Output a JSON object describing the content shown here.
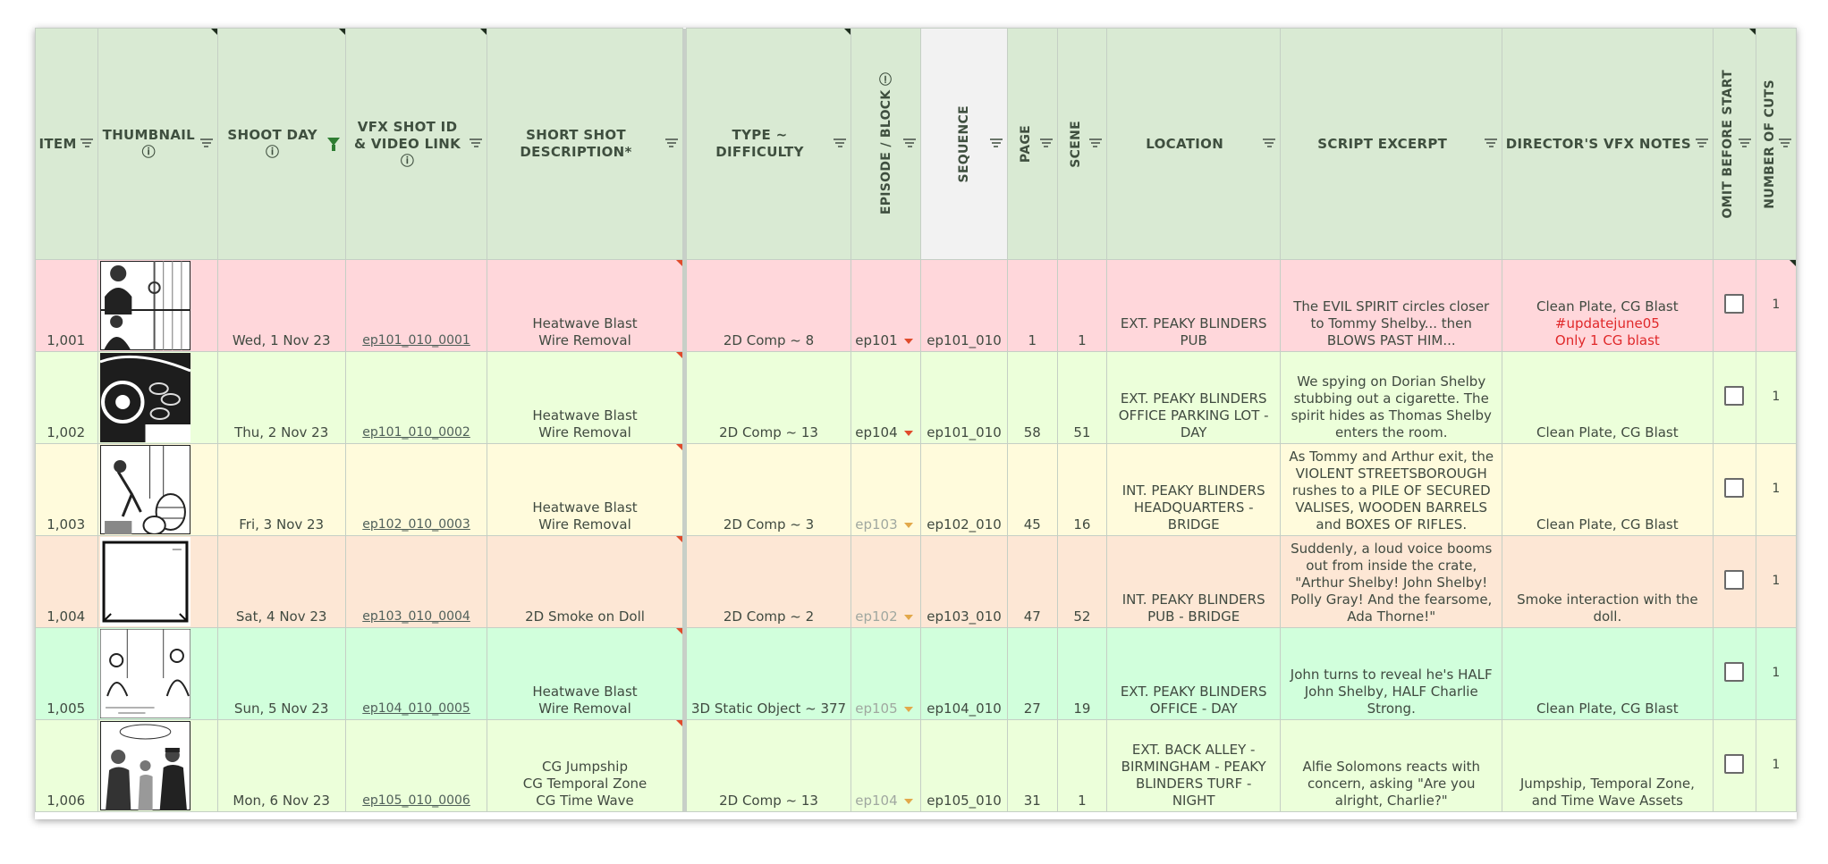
{
  "headers": {
    "item": "ITEM",
    "thumbnail": "THUMBNAIL ⓘ",
    "shoot_day": "SHOOT DAY ⓘ",
    "vfx_shot_id": "VFX SHOT ID & VIDEO LINK ⓘ",
    "short_shot_description": "SHORT SHOT DESCRIPTION*",
    "type_difficulty": "TYPE ~ DIFFICULTY",
    "episode_block": "EPISODE / BLOCK ⓘ",
    "sequence": "SEQUENCE",
    "page": "PAGE",
    "scene": "SCENE",
    "location": "LOCATION",
    "script_excerpt": "SCRIPT EXCERPT",
    "directors_notes": "DIRECTOR'S VFX NOTES",
    "omit_before_start": "OMIT BEFORE START",
    "number_of_cuts": "NUMBER OF CUTS"
  },
  "colors": {
    "header_bg": "#d9ead3",
    "sequence_header_bg": "#f2f2f2",
    "row_pink": "#ffd7db",
    "row_light_green": "#ecffda",
    "row_yellow": "#fffbdc",
    "row_peach": "#fde7d5",
    "row_mint": "#d1ffdc",
    "accent_red": "#e0282a",
    "filter_green": "#2e7d32"
  },
  "rows": [
    {
      "item": "1,001",
      "thumbnail_icon": "storyboard-two-men-talking",
      "shoot_day": "Wed, 1 Nov 23",
      "vfx_shot_id": "ep101_010_0001",
      "description": [
        "Heatwave Blast",
        "Wire Removal"
      ],
      "type": "2D Comp ~ 8",
      "episode": "ep101",
      "episode_dim": false,
      "sequence": "ep101_010",
      "page": "1",
      "scene": "1",
      "location": [
        "EXT. PEAKY BLINDERS",
        "PUB"
      ],
      "script": [
        "The EVIL SPIRIT circles closer",
        "to Tommy Shelby... then",
        "BLOWS PAST HIM..."
      ],
      "notes": [
        "Clean Plate, CG Blast"
      ],
      "notes_red": [
        "#updatejune05",
        "Only 1 CG blast"
      ],
      "cuts": "1",
      "bg": "#ffd7db"
    },
    {
      "item": "1,002",
      "thumbnail_icon": "storyboard-circles",
      "shoot_day": "Thu, 2 Nov 23",
      "vfx_shot_id": "ep101_010_0002",
      "description": [
        "Heatwave Blast",
        "Wire Removal"
      ],
      "type": "2D Comp ~ 13",
      "episode": "ep104",
      "episode_dim": false,
      "sequence": "ep101_010",
      "page": "58",
      "scene": "51",
      "location": [
        "EXT. PEAKY BLINDERS",
        "OFFICE PARKING LOT -",
        "DAY"
      ],
      "script": [
        "We spying on Dorian Shelby",
        "stubbing out a cigarette. The",
        "spirit hides as Thomas Shelby",
        "enters the room."
      ],
      "notes": [
        "Clean Plate, CG Blast"
      ],
      "notes_red": [],
      "cuts": "1",
      "bg": "#ecffda"
    },
    {
      "item": "1,003",
      "thumbnail_icon": "storyboard-barrels",
      "shoot_day": "Fri, 3 Nov 23",
      "vfx_shot_id": "ep102_010_0003",
      "description": [
        "Heatwave Blast",
        "Wire Removal"
      ],
      "type": "2D Comp ~ 3",
      "episode": "ep103",
      "episode_dim": true,
      "sequence": "ep102_010",
      "page": "45",
      "scene": "16",
      "location": [
        "INT. PEAKY BLINDERS",
        "HEADQUARTERS -",
        "BRIDGE"
      ],
      "script": [
        "As Tommy and Arthur exit, the",
        "VIOLENT STREETSBOROUGH",
        "rushes to a PILE OF SECURED",
        "VALISES, WOODEN BARRELS",
        "and BOXES OF RIFLES."
      ],
      "notes": [
        "Clean Plate, CG Blast"
      ],
      "notes_red": [],
      "cuts": "1",
      "bg": "#fffbdc"
    },
    {
      "item": "1,004",
      "thumbnail_icon": "storyboard-blank-frame",
      "shoot_day": "Sat, 4 Nov 23",
      "vfx_shot_id": "ep103_010_0004",
      "description": [
        "2D Smoke on Doll"
      ],
      "type": "2D Comp ~ 2",
      "episode": "ep102",
      "episode_dim": true,
      "sequence": "ep103_010",
      "page": "47",
      "scene": "52",
      "location": [
        "INT. PEAKY BLINDERS",
        "PUB - BRIDGE"
      ],
      "script": [
        "Suddenly, a loud voice booms",
        "out from inside the crate,",
        "\"Arthur Shelby! John Shelby!",
        "Polly Gray! And the fearsome,",
        "Ada Thorne!\""
      ],
      "notes": [
        "Smoke interaction with the",
        "doll."
      ],
      "notes_red": [],
      "cuts": "1",
      "bg": "#fde7d5"
    },
    {
      "item": "1,005",
      "thumbnail_icon": "storyboard-two-figures",
      "shoot_day": "Sun, 5 Nov 23",
      "vfx_shot_id": "ep104_010_0005",
      "description": [
        "Heatwave Blast",
        "Wire Removal"
      ],
      "type": "3D Static Object ~ 377",
      "episode": "ep105",
      "episode_dim": true,
      "sequence": "ep104_010",
      "page": "27",
      "scene": "19",
      "location": [
        "EXT. PEAKY BLINDERS",
        "OFFICE - DAY"
      ],
      "script": [
        "John turns to reveal he's HALF",
        "John Shelby, HALF Charlie",
        "Strong."
      ],
      "notes": [
        "Clean Plate, CG Blast"
      ],
      "notes_red": [],
      "cuts": "1",
      "bg": "#d1ffdc"
    },
    {
      "item": "1,006",
      "thumbnail_icon": "storyboard-group",
      "shoot_day": "Mon, 6 Nov 23",
      "vfx_shot_id": "ep105_010_0006",
      "description": [
        "CG Jumpship",
        "CG Temporal Zone",
        "CG Time Wave"
      ],
      "type": "2D Comp ~ 13",
      "episode": "ep104",
      "episode_dim": true,
      "sequence": "ep105_010",
      "page": "31",
      "scene": "1",
      "location": [
        "EXT. BACK ALLEY -",
        "BIRMINGHAM - PEAKY",
        "BLINDERS TURF -",
        "NIGHT"
      ],
      "script": [
        "Alfie Solomons reacts with",
        "concern, asking \"Are you",
        "alright, Charlie?\""
      ],
      "notes": [
        "Jumpship, Temporal Zone,",
        "and Time Wave Assets"
      ],
      "notes_red": [],
      "cuts": "1",
      "bg": "#ecffda"
    }
  ]
}
